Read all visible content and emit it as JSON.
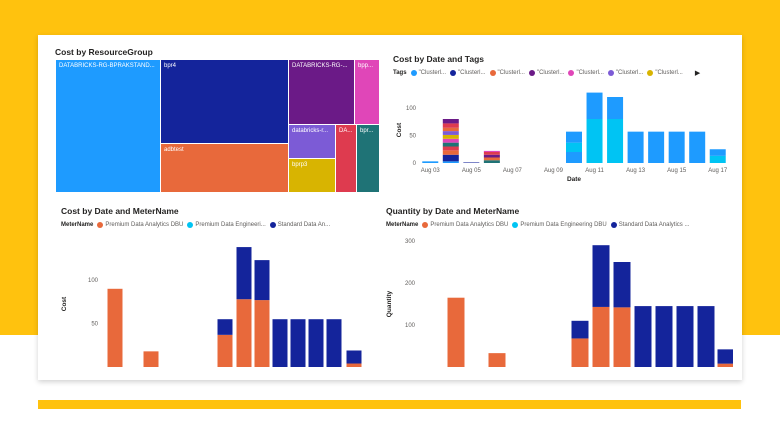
{
  "colors": {
    "background": "#FFC20E",
    "card": "#FFFFFF"
  },
  "treemap": {
    "title": "Cost by ResourceGroup",
    "tiles": [
      {
        "label": "DATABRICKS-RG-BPRAKSTAND...",
        "color": "#1E9BFF"
      },
      {
        "label": "bpr4",
        "color": "#14249B"
      },
      {
        "label": "adbtest",
        "color": "#E8693B"
      },
      {
        "label": "DATABRICKS-RG-...",
        "color": "#6B1A87"
      },
      {
        "label": "bpp...",
        "color": "#E046B8"
      },
      {
        "label": "databricks-r...",
        "color": "#7C5BD6"
      },
      {
        "label": "DA...",
        "color": "#DE3B4F"
      },
      {
        "label": "bpr...",
        "color": "#1F7376"
      },
      {
        "label": "bprp3",
        "color": "#D8B401"
      }
    ]
  },
  "chart_data": [
    {
      "type": "bar",
      "stacked": true,
      "title": "Cost by Date and Tags",
      "legend_label": "Tags",
      "legend": [
        "\"Clusterl...",
        "\"Clusterl...",
        "\"Clusterl...",
        "\"Clusterl...",
        "\"Clusterl...",
        "\"Clusterl...",
        "\"Clusterl..."
      ],
      "legend_colors": [
        "#1E9BFF",
        "#14249B",
        "#E8693B",
        "#6B1A87",
        "#E046B8",
        "#7C5BD6",
        "#D8B401"
      ],
      "xlabel": "Date",
      "ylabel": "Cost",
      "yticks": [
        0,
        50,
        100
      ],
      "ylim": [
        0,
        120
      ],
      "xticks": [
        "Aug 03",
        "Aug 05",
        "Aug 07",
        "Aug 09",
        "Aug 11",
        "Aug 13",
        "Aug 15",
        "Aug 17"
      ],
      "bars": [
        {
          "x": 3.0,
          "segments": [
            {
              "v": 3,
              "c": "#1E9BFF"
            }
          ]
        },
        {
          "x": 4.0,
          "segments": [
            {
              "v": 3,
              "c": "#1E9BFF"
            },
            {
              "v": 12,
              "c": "#14249B"
            },
            {
              "v": 8,
              "c": "#E8693B"
            },
            {
              "v": 7,
              "c": "#DE3B4F"
            },
            {
              "v": 7,
              "c": "#1F7376"
            },
            {
              "v": 7,
              "c": "#E046B8"
            },
            {
              "v": 7,
              "c": "#D8B401"
            },
            {
              "v": 7,
              "c": "#7C5BD6"
            },
            {
              "v": 6,
              "c": "#E8693B"
            },
            {
              "v": 8,
              "c": "#DE3B4F"
            },
            {
              "v": 8,
              "c": "#6B1A87"
            }
          ]
        },
        {
          "x": 5.0,
          "segments": [
            {
              "v": 1,
              "c": "#14249B"
            }
          ]
        },
        {
          "x": 6.0,
          "segments": [
            {
              "v": 5,
              "c": "#1F7376"
            },
            {
              "v": 5,
              "c": "#E8693B"
            },
            {
              "v": 5,
              "c": "#6B1A87"
            },
            {
              "v": 5,
              "c": "#DE3B4F"
            },
            {
              "v": 2,
              "c": "#E046B8"
            }
          ]
        },
        {
          "x": 10.0,
          "segments": [
            {
              "v": 20,
              "c": "#1E9BFF"
            },
            {
              "v": 17,
              "c": "#00C4F3"
            },
            {
              "v": 20,
              "c": "#1E9BFF"
            }
          ]
        },
        {
          "x": 11.0,
          "segments": [
            {
              "v": 80,
              "c": "#00C4F3"
            },
            {
              "v": 48,
              "c": "#1E9BFF"
            }
          ]
        },
        {
          "x": 12.0,
          "segments": [
            {
              "v": 80,
              "c": "#00C4F3"
            },
            {
              "v": 40,
              "c": "#1E9BFF"
            }
          ]
        },
        {
          "x": 13.0,
          "segments": [
            {
              "v": 57,
              "c": "#1E9BFF"
            }
          ]
        },
        {
          "x": 14.0,
          "segments": [
            {
              "v": 57,
              "c": "#1E9BFF"
            }
          ]
        },
        {
          "x": 15.0,
          "segments": [
            {
              "v": 57,
              "c": "#1E9BFF"
            }
          ]
        },
        {
          "x": 16.0,
          "segments": [
            {
              "v": 57,
              "c": "#1E9BFF"
            }
          ]
        },
        {
          "x": 17.0,
          "segments": [
            {
              "v": 13,
              "c": "#00C4F3"
            },
            {
              "v": 12,
              "c": "#1E9BFF"
            }
          ]
        }
      ]
    },
    {
      "type": "bar",
      "stacked": true,
      "title": "Cost by Date and MeterName",
      "legend_label": "MeterName",
      "legend": [
        "Premium Data Analytics DBU",
        "Premium Data Engineeri...",
        "Standard Data An..."
      ],
      "legend_colors": [
        "#E8693B",
        "#00C4F3",
        "#14249B"
      ],
      "ylabel": "Cost",
      "yticks": [
        50,
        100
      ],
      "ylim": [
        0,
        145
      ],
      "bars": [
        {
          "x": 0,
          "segments": [
            {
              "v": 90,
              "c": "#E8693B"
            }
          ]
        },
        {
          "x": 1,
          "segments": [
            {
              "v": 18,
              "c": "#E8693B"
            }
          ]
        },
        {
          "x": 2,
          "segments": [
            {
              "v": 37,
              "c": "#E8693B"
            },
            {
              "v": 18,
              "c": "#14249B"
            }
          ]
        },
        {
          "x": 3,
          "segments": [
            {
              "v": 78,
              "c": "#E8693B"
            },
            {
              "v": 60,
              "c": "#14249B"
            }
          ]
        },
        {
          "x": 4,
          "segments": [
            {
              "v": 77,
              "c": "#E8693B"
            },
            {
              "v": 46,
              "c": "#14249B"
            }
          ]
        },
        {
          "x": 5,
          "segments": [
            {
              "v": 55,
              "c": "#14249B"
            }
          ]
        },
        {
          "x": 6,
          "segments": [
            {
              "v": 55,
              "c": "#14249B"
            }
          ]
        },
        {
          "x": 7,
          "segments": [
            {
              "v": 55,
              "c": "#14249B"
            }
          ]
        },
        {
          "x": 8,
          "segments": [
            {
              "v": 55,
              "c": "#14249B"
            }
          ]
        },
        {
          "x": 9,
          "segments": [
            {
              "v": 4,
              "c": "#E8693B"
            },
            {
              "v": 15,
              "c": "#14249B"
            }
          ]
        }
      ]
    },
    {
      "type": "bar",
      "stacked": true,
      "title": "Quantity by Date and MeterName",
      "legend_label": "MeterName",
      "legend": [
        "Premium Data Analytics DBU",
        "Premium Data Engineering DBU",
        "Standard Data Analytics ..."
      ],
      "legend_colors": [
        "#E8693B",
        "#00C4F3",
        "#14249B"
      ],
      "ylabel": "Quantity",
      "yticks": [
        100,
        200,
        300
      ],
      "ylim": [
        0,
        300
      ],
      "bars": [
        {
          "x": 0,
          "segments": [
            {
              "v": 165,
              "c": "#E8693B"
            }
          ]
        },
        {
          "x": 1,
          "segments": [
            {
              "v": 33,
              "c": "#E8693B"
            }
          ]
        },
        {
          "x": 2,
          "segments": [
            {
              "v": 68,
              "c": "#E8693B"
            },
            {
              "v": 42,
              "c": "#14249B"
            }
          ]
        },
        {
          "x": 3,
          "segments": [
            {
              "v": 143,
              "c": "#E8693B"
            },
            {
              "v": 147,
              "c": "#14249B"
            }
          ]
        },
        {
          "x": 4,
          "segments": [
            {
              "v": 142,
              "c": "#E8693B"
            },
            {
              "v": 108,
              "c": "#14249B"
            }
          ]
        },
        {
          "x": 5,
          "segments": [
            {
              "v": 145,
              "c": "#14249B"
            }
          ]
        },
        {
          "x": 6,
          "segments": [
            {
              "v": 145,
              "c": "#14249B"
            }
          ]
        },
        {
          "x": 7,
          "segments": [
            {
              "v": 145,
              "c": "#14249B"
            }
          ]
        },
        {
          "x": 8,
          "segments": [
            {
              "v": 145,
              "c": "#14249B"
            }
          ]
        },
        {
          "x": 9,
          "segments": [
            {
              "v": 8,
              "c": "#E8693B"
            },
            {
              "v": 34,
              "c": "#14249B"
            }
          ]
        }
      ]
    }
  ]
}
